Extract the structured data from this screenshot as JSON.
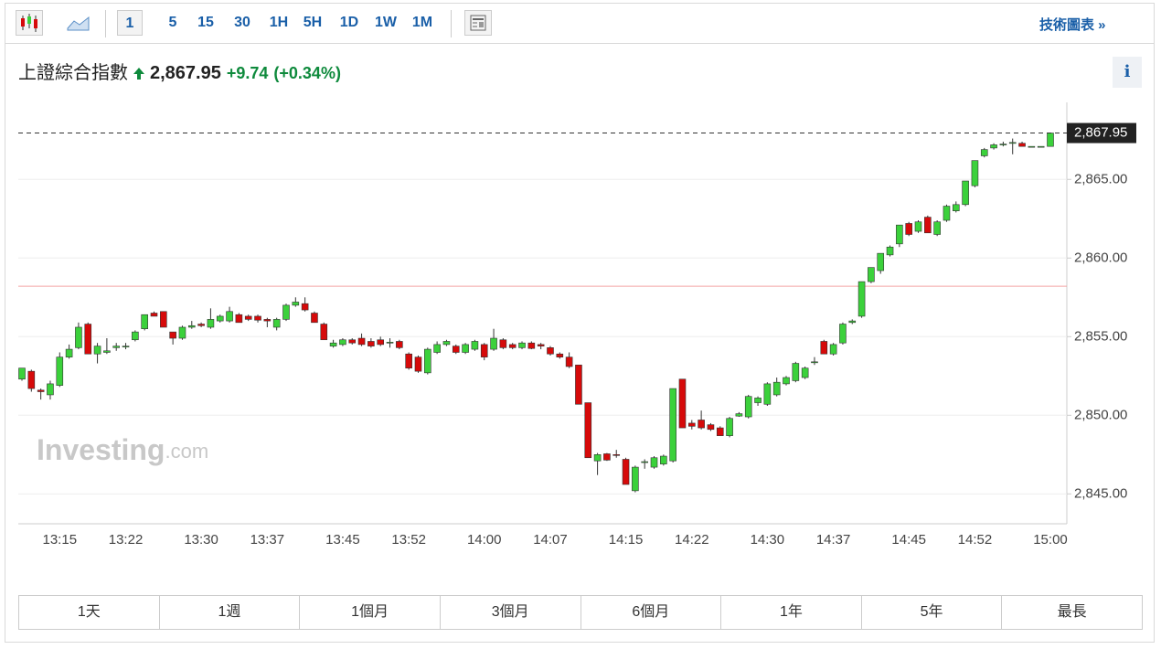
{
  "toolbar": {
    "intervals": [
      "1",
      "5",
      "15",
      "30",
      "1H",
      "5H",
      "1D",
      "1W",
      "1M"
    ],
    "link": "技術圖表 »"
  },
  "quote": {
    "name": "上證綜合指數",
    "change": "+9.74",
    "change_pct": "(+0.34%)",
    "info": "i"
  },
  "watermark": {
    "brand": "Investing",
    "suffix": ".com"
  },
  "ranges": [
    "1天",
    "1週",
    "1個月",
    "3個月",
    "6個月",
    "1年",
    "5年",
    "最長"
  ],
  "chart_data": {
    "type": "candlestick",
    "up_color": "#3bd13b",
    "down_color": "#d60a0a",
    "x": [
      "13:11",
      "13:12",
      "13:13",
      "13:14",
      "13:15",
      "13:16",
      "13:17",
      "13:18",
      "13:19",
      "13:20",
      "13:21",
      "13:22",
      "13:23",
      "13:24",
      "13:25",
      "13:26",
      "13:27",
      "13:28",
      "13:29",
      "13:30",
      "13:31",
      "13:32",
      "13:33",
      "13:34",
      "13:35",
      "13:36",
      "13:37",
      "13:38",
      "13:39",
      "13:40",
      "13:41",
      "13:42",
      "13:43",
      "13:44",
      "13:45",
      "13:46",
      "13:47",
      "13:48",
      "13:49",
      "13:50",
      "13:51",
      "13:52",
      "13:53",
      "13:54",
      "13:55",
      "13:56",
      "13:57",
      "13:58",
      "13:59",
      "14:00",
      "14:01",
      "14:02",
      "14:03",
      "14:04",
      "14:05",
      "14:06",
      "14:07",
      "14:08",
      "14:09",
      "14:10",
      "14:11",
      "14:12",
      "14:13",
      "14:14",
      "14:15",
      "14:16",
      "14:17",
      "14:18",
      "14:19",
      "14:20",
      "14:21",
      "14:22",
      "14:23",
      "14:24",
      "14:25",
      "14:26",
      "14:27",
      "14:28",
      "14:29",
      "14:30",
      "14:31",
      "14:32",
      "14:33",
      "14:34",
      "14:35",
      "14:36",
      "14:37",
      "14:38",
      "14:39",
      "14:40",
      "14:41",
      "14:42",
      "14:43",
      "14:44",
      "14:45",
      "14:46",
      "14:47",
      "14:48",
      "14:49",
      "14:50",
      "14:51",
      "14:52",
      "14:53",
      "14:54",
      "14:55",
      "14:56",
      "14:57",
      "14:58",
      "14:59",
      "15:00"
    ],
    "open": [
      2852.3,
      2852.8,
      2851.6,
      2851.3,
      2851.9,
      2853.7,
      2854.3,
      2855.8,
      2853.9,
      2854.0,
      2854.3,
      2854.4,
      2854.8,
      2855.5,
      2856.5,
      2856.6,
      2855.3,
      2854.9,
      2855.6,
      2855.8,
      2855.6,
      2856.0,
      2856.0,
      2856.4,
      2856.3,
      2856.3,
      2856.1,
      2855.6,
      2856.1,
      2857.0,
      2857.1,
      2856.5,
      2855.8,
      2854.4,
      2854.5,
      2854.8,
      2854.9,
      2854.7,
      2854.8,
      2854.6,
      2854.7,
      2853.9,
      2853.7,
      2852.7,
      2854.0,
      2854.5,
      2854.4,
      2854.0,
      2854.2,
      2854.5,
      2854.2,
      2854.8,
      2854.5,
      2854.3,
      2854.6,
      2854.5,
      2854.3,
      2853.9,
      2853.7,
      2853.2,
      2850.8,
      2847.1,
      2847.55,
      2847.5,
      2847.2,
      2845.2,
      2847.0,
      2846.7,
      2846.9,
      2847.1,
      2852.3,
      2849.5,
      2849.7,
      2849.4,
      2849.2,
      2848.7,
      2849.95,
      2849.9,
      2850.8,
      2850.7,
      2851.3,
      2852.0,
      2852.2,
      2852.4,
      2853.35,
      2854.7,
      2853.9,
      2854.6,
      2855.9,
      2856.3,
      2858.5,
      2859.2,
      2860.2,
      2860.9,
      2862.2,
      2861.7,
      2862.6,
      2861.5,
      2862.4,
      2863.0,
      2863.4,
      2864.6,
      2866.5,
      2867.0,
      2867.2,
      2867.3,
      2867.3,
      2867.1,
      2867.1,
      2867.1
    ],
    "high": [
      2853.0,
      2852.9,
      2851.7,
      2852.2,
      2854.0,
      2854.5,
      2855.9,
      2855.9,
      2854.6,
      2854.9,
      2854.6,
      2854.6,
      2855.4,
      2856.4,
      2856.6,
      2856.6,
      2855.3,
      2855.7,
      2856.0,
      2855.9,
      2856.8,
      2856.4,
      2856.9,
      2856.5,
      2856.4,
      2856.4,
      2856.2,
      2856.2,
      2857.1,
      2857.5,
      2857.5,
      2856.6,
      2855.9,
      2854.8,
      2854.9,
      2854.9,
      2855.2,
      2854.9,
      2855.0,
      2854.9,
      2854.8,
      2854.0,
      2853.8,
      2854.3,
      2854.7,
      2854.8,
      2854.5,
      2854.6,
      2854.8,
      2854.6,
      2855.5,
      2854.9,
      2854.6,
      2854.7,
      2854.7,
      2854.6,
      2854.4,
      2854.0,
      2854.0,
      2853.2,
      2850.8,
      2847.6,
      2847.6,
      2847.8,
      2847.3,
      2846.8,
      2847.2,
      2847.4,
      2847.5,
      2851.7,
      2852.3,
      2849.7,
      2850.3,
      2849.5,
      2849.3,
      2849.9,
      2850.2,
      2851.3,
      2851.2,
      2852.1,
      2852.4,
      2852.5,
      2853.4,
      2853.1,
      2853.7,
      2854.8,
      2854.6,
      2855.9,
      2856.1,
      2858.5,
      2859.4,
      2860.3,
      2860.8,
      2862.1,
      2862.3,
      2862.4,
      2862.7,
      2862.4,
      2863.4,
      2863.6,
      2864.9,
      2866.2,
      2867.0,
      2867.3,
      2867.4,
      2867.6,
      2867.4,
      2867.1,
      2867.1,
      2867.95
    ],
    "low": [
      2852.2,
      2851.5,
      2851.0,
      2851.0,
      2851.8,
      2853.6,
      2854.2,
      2853.9,
      2853.3,
      2853.9,
      2854.1,
      2854.2,
      2854.7,
      2855.4,
      2856.3,
      2855.6,
      2854.5,
      2854.8,
      2855.5,
      2855.6,
      2855.5,
      2855.9,
      2855.9,
      2855.9,
      2856.0,
      2855.9,
      2855.6,
      2855.4,
      2856.0,
      2856.9,
      2856.6,
      2855.9,
      2854.8,
      2854.3,
      2854.4,
      2854.5,
      2854.4,
      2854.3,
      2854.4,
      2854.3,
      2854.2,
      2852.9,
      2852.7,
      2852.6,
      2853.9,
      2854.4,
      2853.9,
      2853.9,
      2854.1,
      2853.5,
      2854.1,
      2854.2,
      2854.2,
      2854.2,
      2854.2,
      2854.2,
      2853.8,
      2853.6,
      2853.0,
      2850.7,
      2847.3,
      2846.2,
      2847.1,
      2847.3,
      2845.6,
      2845.1,
      2846.6,
      2846.6,
      2846.8,
      2847.0,
      2849.2,
      2849.1,
      2849.1,
      2849.0,
      2848.7,
      2848.6,
      2849.9,
      2849.8,
      2850.6,
      2850.6,
      2851.2,
      2851.9,
      2852.1,
      2852.3,
      2853.2,
      2853.9,
      2853.8,
      2854.5,
      2855.8,
      2856.2,
      2858.4,
      2859.0,
      2860.1,
      2860.7,
      2861.4,
      2861.6,
      2861.6,
      2861.4,
      2862.3,
      2862.9,
      2863.3,
      2864.5,
      2866.4,
      2866.9,
      2867.1,
      2866.6,
      2867.1,
      2867.1,
      2867.1,
      2867.1
    ],
    "close": [
      2853.0,
      2851.7,
      2851.5,
      2852.0,
      2853.7,
      2854.2,
      2855.6,
      2853.9,
      2854.4,
      2854.1,
      2854.4,
      2854.4,
      2855.3,
      2856.4,
      2856.3,
      2855.6,
      2854.9,
      2855.6,
      2855.7,
      2855.7,
      2856.1,
      2856.3,
      2856.6,
      2855.9,
      2856.1,
      2856.05,
      2856.0,
      2856.1,
      2857.0,
      2857.2,
      2856.7,
      2855.9,
      2854.8,
      2854.6,
      2854.8,
      2854.6,
      2854.5,
      2854.4,
      2854.5,
      2854.65,
      2854.3,
      2853.0,
      2852.8,
      2854.2,
      2854.5,
      2854.7,
      2854.0,
      2854.5,
      2854.7,
      2853.7,
      2854.9,
      2854.3,
      2854.3,
      2854.6,
      2854.25,
      2854.4,
      2853.9,
      2853.7,
      2853.1,
      2850.7,
      2847.3,
      2847.5,
      2847.15,
      2847.45,
      2845.6,
      2846.7,
      2847.05,
      2847.3,
      2847.4,
      2851.7,
      2849.2,
      2849.3,
      2849.2,
      2849.1,
      2848.7,
      2849.8,
      2850.1,
      2851.2,
      2851.1,
      2852.0,
      2852.1,
      2852.4,
      2853.3,
      2853.0,
      2853.4,
      2853.9,
      2854.5,
      2855.8,
      2856.0,
      2858.5,
      2859.4,
      2860.3,
      2860.7,
      2862.1,
      2861.5,
      2862.3,
      2861.6,
      2862.3,
      2863.3,
      2863.4,
      2864.9,
      2866.2,
      2866.9,
      2867.2,
      2867.25,
      2867.35,
      2867.1,
      2867.1,
      2867.1,
      2867.95
    ],
    "last_price": {
      "value": 2867.95,
      "label": "2,867.95"
    },
    "prev_close": 2858.21,
    "ylim": [
      2843.1,
      2869.9
    ],
    "yticks": [
      {
        "value": 2845,
        "label": "2,845.00"
      },
      {
        "value": 2850,
        "label": "2,850.00"
      },
      {
        "value": 2855,
        "label": "2,855.00"
      },
      {
        "value": 2860,
        "label": "2,860.00"
      },
      {
        "value": 2865,
        "label": "2,865.00"
      }
    ],
    "xticks": [
      "13:15",
      "13:22",
      "13:30",
      "13:37",
      "13:45",
      "13:52",
      "14:00",
      "14:07",
      "14:15",
      "14:22",
      "14:30",
      "14:37",
      "14:45",
      "14:52",
      "15:00"
    ],
    "grid": true
  }
}
